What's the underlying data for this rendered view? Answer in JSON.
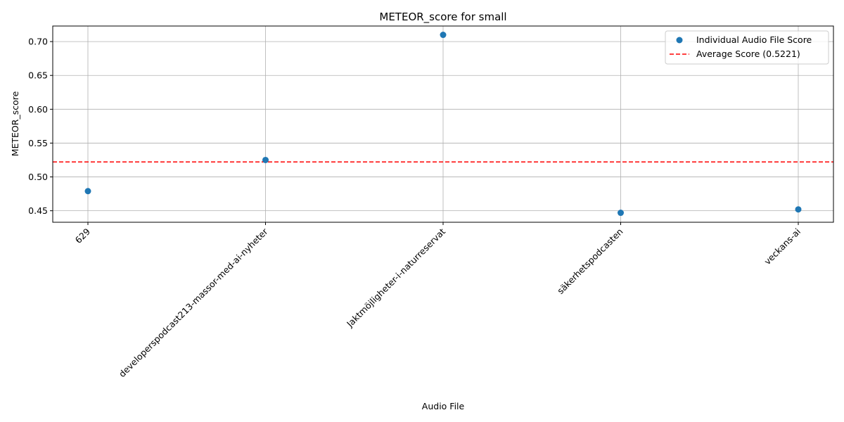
{
  "chart_data": {
    "type": "scatter",
    "title": "METEOR_score for small",
    "xlabel": "Audio File",
    "ylabel": "METEOR_score",
    "categories": [
      "629",
      "developerspodcast213-massor-med-ai-nyheter",
      "Jaktmöjligheter-i-naturreservat",
      "säkerhetspodcasten",
      "veckans-ai"
    ],
    "series": [
      {
        "name": "Individual Audio File Score",
        "values": [
          0.479,
          0.525,
          0.71,
          0.447,
          0.452
        ],
        "color": "#1f77b4"
      }
    ],
    "average": {
      "name": "Average Score (0.5221)",
      "value": 0.5221,
      "color": "#ff0000",
      "style": "dashed"
    },
    "ylim": [
      0.433,
      0.723
    ],
    "yticks": [
      "0.45",
      "0.50",
      "0.55",
      "0.60",
      "0.65",
      "0.70"
    ],
    "grid": true,
    "legend_position": "top-right"
  }
}
